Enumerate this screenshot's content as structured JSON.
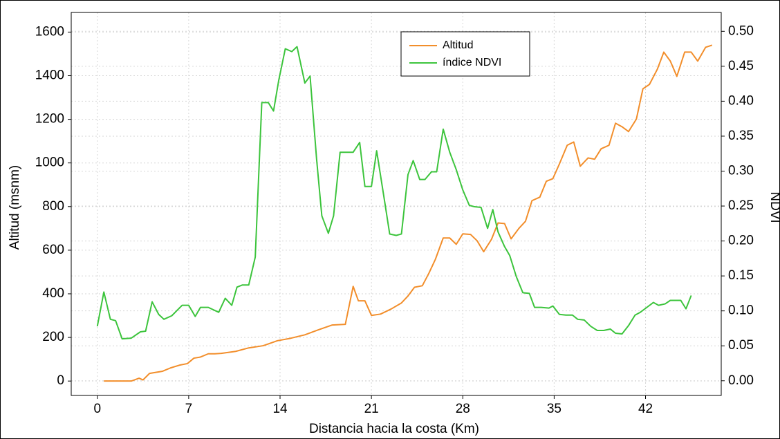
{
  "chart_data": {
    "type": "line",
    "xlabel": "Distancia hacia la costa (Km)",
    "ylabel": "Altitud (msnm)",
    "y2label": "NDVI",
    "xlim": [
      -2,
      47.8
    ],
    "xticks": [
      0,
      7,
      14,
      21,
      28,
      35,
      42
    ],
    "ylim": [
      -66,
      1690
    ],
    "yticks": [
      0,
      200,
      400,
      600,
      800,
      1000,
      1200,
      1400,
      1600
    ],
    "y2lim": [
      -0.021,
      0.527
    ],
    "y2ticks": [
      {
        "value": 0,
        "label": "0.00"
      },
      {
        "value": 0.05,
        "label": "0.05"
      },
      {
        "value": 0.1,
        "label": "0.10"
      },
      {
        "value": 0.15,
        "label": "0.15"
      },
      {
        "value": 0.2,
        "label": "0.20"
      },
      {
        "value": 0.25,
        "label": "0.25"
      },
      {
        "value": 0.3,
        "label": "0.30"
      },
      {
        "value": 0.35,
        "label": "0.35"
      },
      {
        "value": 0.4,
        "label": "0.40"
      },
      {
        "value": 0.45,
        "label": "0.45"
      },
      {
        "value": 0.5,
        "label": "0.50"
      }
    ],
    "grid": true,
    "legend": "top",
    "series": [
      {
        "name": "Altitud",
        "color": "#f28e2b",
        "x": [
          0.5,
          2.6,
          3.2,
          3.5,
          4.0,
          5.0,
          5.6,
          6.3,
          6.9,
          7.4,
          7.9,
          8.5,
          9.0,
          9.5,
          10.6,
          11.6,
          12.7,
          13.8,
          14.8,
          15.9,
          16.9,
          18.0,
          19.0,
          19.6,
          20.0,
          20.5,
          21.0,
          21.7,
          22.5,
          23.3,
          23.8,
          24.3,
          24.9,
          25.4,
          25.9,
          26.5,
          27.0,
          27.5,
          28.0,
          28.6,
          29.1,
          29.6,
          30.2,
          30.7,
          31.2,
          31.7,
          32.3,
          32.8,
          33.3,
          33.9,
          34.4,
          34.9,
          35.4,
          36.0,
          36.5,
          37.0,
          37.6,
          38.1,
          38.6,
          39.2,
          39.7,
          40.2,
          40.7,
          41.3,
          41.8,
          42.3,
          42.9,
          43.4,
          43.9,
          44.4,
          45.0,
          45.5,
          46.0,
          46.6,
          47.1
        ],
        "values": [
          0,
          0,
          13,
          5,
          35,
          45,
          60,
          73,
          80,
          105,
          110,
          125,
          125,
          127,
          136,
          152,
          162,
          185,
          196,
          212,
          234,
          257,
          260,
          434,
          368,
          368,
          301,
          307,
          330,
          358,
          390,
          430,
          437,
          494,
          558,
          656,
          656,
          627,
          675,
          672,
          643,
          593,
          650,
          725,
          722,
          652,
          700,
          732,
          827,
          843,
          916,
          928,
          995,
          1081,
          1096,
          985,
          1023,
          1017,
          1065,
          1081,
          1182,
          1166,
          1144,
          1201,
          1340,
          1360,
          1429,
          1508,
          1467,
          1397,
          1508,
          1508,
          1467,
          1530,
          1540
        ]
      },
      {
        "name": "índice NDVI",
        "color": "#3cc43c",
        "axis": "y2",
        "x": [
          0,
          0.5,
          1.0,
          1.4,
          1.9,
          2.6,
          3.3,
          3.7,
          4.2,
          4.7,
          5.1,
          5.7,
          6.5,
          7.0,
          7.5,
          7.9,
          8.5,
          9.3,
          9.8,
          10.3,
          10.7,
          11.1,
          11.6,
          12.1,
          12.6,
          13.1,
          13.5,
          13.9,
          14.4,
          14.9,
          15.3,
          15.9,
          16.3,
          16.8,
          17.2,
          17.7,
          18.1,
          18.6,
          19.2,
          19.6,
          20.1,
          20.5,
          21.0,
          21.4,
          22.0,
          22.4,
          22.9,
          23.3,
          23.8,
          24.2,
          24.7,
          25.1,
          25.6,
          26.0,
          26.5,
          27.0,
          27.5,
          28.0,
          28.5,
          28.9,
          29.4,
          29.9,
          30.3,
          30.7,
          31.2,
          31.6,
          32.1,
          32.6,
          33.1,
          33.5,
          34.0,
          34.6,
          34.9,
          35.4,
          35.9,
          36.4,
          36.8,
          37.3,
          37.8,
          38.3,
          38.8,
          39.3,
          39.7,
          40.2,
          40.7,
          41.2,
          41.6,
          42.1,
          42.6,
          43.0,
          43.5,
          43.9,
          44.3,
          44.7,
          45.1,
          45.5
        ],
        "values": [
          0.078,
          0.127,
          0.088,
          0.086,
          0.06,
          0.061,
          0.07,
          0.071,
          0.113,
          0.095,
          0.088,
          0.093,
          0.108,
          0.108,
          0.092,
          0.105,
          0.105,
          0.098,
          0.118,
          0.108,
          0.134,
          0.137,
          0.137,
          0.177,
          0.398,
          0.398,
          0.386,
          0.43,
          0.475,
          0.471,
          0.478,
          0.426,
          0.436,
          0.317,
          0.236,
          0.211,
          0.236,
          0.327,
          0.327,
          0.327,
          0.341,
          0.278,
          0.278,
          0.329,
          0.258,
          0.21,
          0.208,
          0.21,
          0.295,
          0.315,
          0.288,
          0.288,
          0.299,
          0.299,
          0.36,
          0.327,
          0.302,
          0.273,
          0.251,
          0.249,
          0.248,
          0.218,
          0.245,
          0.213,
          0.192,
          0.179,
          0.149,
          0.126,
          0.125,
          0.105,
          0.105,
          0.104,
          0.107,
          0.095,
          0.094,
          0.094,
          0.088,
          0.087,
          0.078,
          0.072,
          0.072,
          0.074,
          0.068,
          0.067,
          0.079,
          0.094,
          0.098,
          0.105,
          0.112,
          0.108,
          0.11,
          0.115,
          0.115,
          0.115,
          0.103,
          0.122
        ]
      }
    ]
  }
}
